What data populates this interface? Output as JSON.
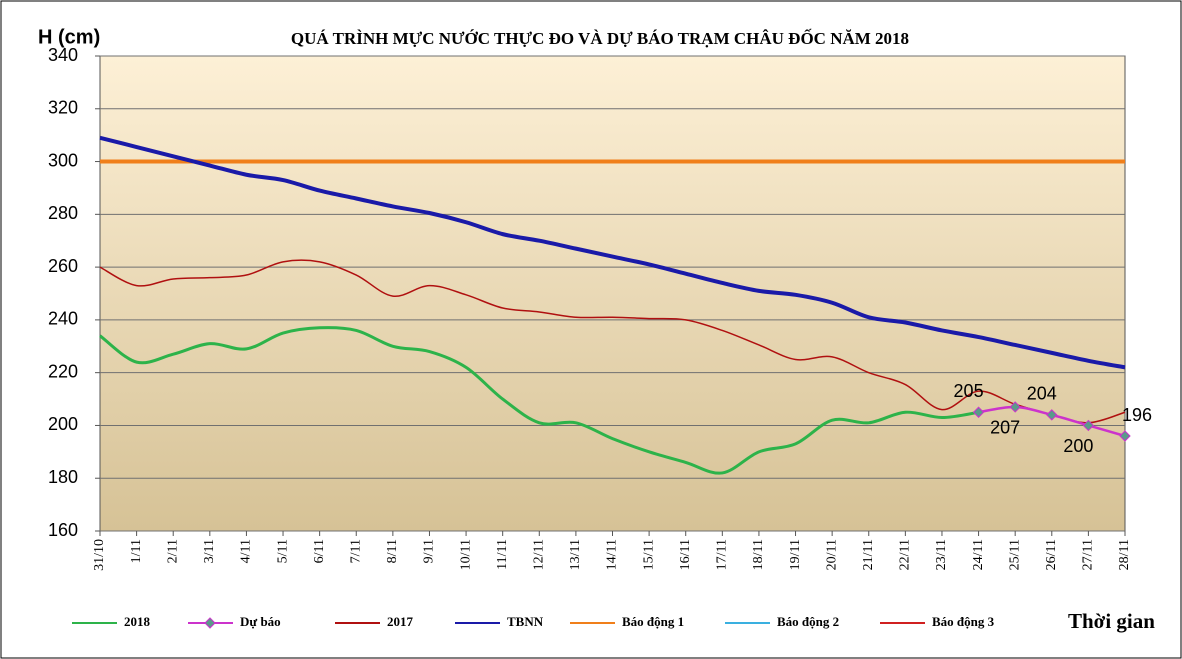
{
  "chart_data": {
    "type": "line",
    "title": "QUÁ TRÌNH MỰC NƯỚC THỰC ĐO VÀ DỰ BÁO TRẠM CHÂU ĐỐC NĂM 2018",
    "y_label": "H (cm)",
    "x_label": "Thời gian",
    "categories": [
      "31/10",
      "1/11",
      "2/11",
      "3/11",
      "4/11",
      "5/11",
      "6/11",
      "7/11",
      "8/11",
      "9/11",
      "10/11",
      "11/11",
      "12/11",
      "13/11",
      "14/11",
      "15/11",
      "16/11",
      "17/11",
      "18/11",
      "19/11",
      "20/11",
      "21/11",
      "22/11",
      "23/11",
      "24/11",
      "25/11",
      "26/11",
      "27/11",
      "28/11"
    ],
    "series": [
      {
        "name": "2018",
        "color": "#2db34a",
        "values": [
          234,
          224,
          227,
          231,
          229,
          235,
          237,
          236,
          230,
          228,
          222,
          210,
          201,
          201,
          195,
          190,
          186,
          182,
          190,
          193,
          202,
          201,
          205,
          203,
          205,
          null,
          null,
          null,
          null
        ]
      },
      {
        "name": "Dự báo",
        "color": "#cc33cc",
        "marker_color": "#5a9a8a",
        "values": [
          null,
          null,
          null,
          null,
          null,
          null,
          null,
          null,
          null,
          null,
          null,
          null,
          null,
          null,
          null,
          null,
          null,
          null,
          null,
          null,
          null,
          null,
          null,
          null,
          205,
          207,
          204,
          200,
          196
        ]
      },
      {
        "name": "2017",
        "color": "#b01010",
        "values": [
          260,
          253,
          255.5,
          256,
          257,
          262,
          262,
          257,
          249,
          253,
          249.5,
          244.5,
          243,
          241,
          241,
          240.5,
          240,
          236,
          230.5,
          225,
          226,
          220,
          215.5,
          206,
          213,
          208,
          204,
          201,
          205
        ]
      },
      {
        "name": "TBNN",
        "color": "#1a1aa8",
        "values": [
          309,
          305.5,
          302,
          298.5,
          295,
          293,
          289,
          286,
          283,
          280.5,
          277,
          272.5,
          270,
          267,
          264,
          261,
          257.5,
          254,
          251,
          249.5,
          246.5,
          241,
          239,
          236,
          233.5,
          230.5,
          227.5,
          224.5,
          222
        ]
      },
      {
        "name": "Báo động 1",
        "color": "#f07f1a",
        "values": [
          300,
          300,
          300,
          300,
          300,
          300,
          300,
          300,
          300,
          300,
          300,
          300,
          300,
          300,
          300,
          300,
          300,
          300,
          300,
          300,
          300,
          300,
          300,
          300,
          300,
          300,
          300,
          300,
          300
        ]
      },
      {
        "name": "Báo động 2",
        "color": "#3ab0e0",
        "values": [
          null,
          null,
          null,
          null,
          null,
          null,
          null,
          null,
          null,
          null,
          null,
          null,
          null,
          null,
          null,
          null,
          null,
          null,
          null,
          null,
          null,
          null,
          null,
          null,
          null,
          null,
          null,
          null,
          null
        ]
      },
      {
        "name": "Báo động 3",
        "color": "#d02020",
        "values": [
          null,
          null,
          null,
          null,
          null,
          null,
          null,
          null,
          null,
          null,
          null,
          null,
          null,
          null,
          null,
          null,
          null,
          null,
          null,
          null,
          null,
          null,
          null,
          null,
          null,
          null,
          null,
          null,
          null
        ]
      }
    ],
    "ylim": [
      160,
      340
    ],
    "yticks": [
      160,
      180,
      200,
      220,
      240,
      260,
      280,
      300,
      320,
      340
    ],
    "grid": true
  }
}
